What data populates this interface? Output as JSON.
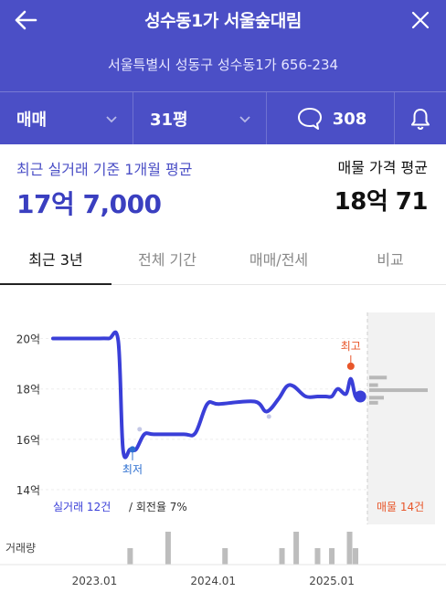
{
  "header": {
    "title": "성수동1가 서울숲대림",
    "address": "서울특별시 성동구 성수동1가 656-234",
    "back_icon": "arrow-left-icon",
    "close_icon": "close-icon"
  },
  "filters": {
    "trade_type": "매매",
    "size": "31평",
    "comment_count": "308"
  },
  "summary": {
    "recent_label": "최근 실거래 기준 1개월 평균",
    "recent_value": "17억 7,000",
    "listing_label": "매물 가격 평균",
    "listing_value": "18억 71"
  },
  "tabs": [
    {
      "label": "최근 3년",
      "active": true
    },
    {
      "label": "전체 기간",
      "active": false
    },
    {
      "label": "매매/전세",
      "active": false
    },
    {
      "label": "비교",
      "active": false
    }
  ],
  "colors": {
    "brand": "#4b4fc6",
    "line": "#3a3fd8",
    "high": "#e8562a",
    "volume": "#bdbdbd"
  },
  "chart_data": {
    "type": "line",
    "y_ticks": [
      "20억",
      "18억",
      "16억",
      "14억"
    ],
    "ylim": [
      14,
      20.6
    ],
    "x_ticks": [
      "2023.01",
      "2024.01",
      "2025.01"
    ],
    "x_tick_values": [
      2023.0,
      2024.0,
      2025.0
    ],
    "xlim": [
      2022.65,
      2025.3
    ],
    "series": [
      {
        "x": [
          2022.65,
          2022.9,
          2023.0,
          2023.12,
          2023.2,
          2023.24,
          2023.3,
          2023.35,
          2023.42,
          2023.5,
          2023.75,
          2023.85,
          2023.95,
          2024.05,
          2024.35,
          2024.45,
          2024.55,
          2024.62,
          2024.68,
          2024.78,
          2024.88,
          2024.95,
          2025.0,
          2025.05,
          2025.12,
          2025.16,
          2025.2,
          2025.24
        ],
        "values": [
          20.0,
          20.0,
          20.0,
          20.0,
          19.9,
          15.6,
          15.6,
          15.6,
          16.2,
          16.2,
          16.2,
          16.25,
          17.4,
          17.4,
          17.5,
          17.1,
          17.6,
          18.1,
          18.1,
          17.7,
          17.7,
          17.7,
          17.7,
          18.0,
          17.8,
          18.4,
          17.7,
          17.7
        ]
      }
    ],
    "scatter_points": {
      "x": [
        2023.38,
        2024.47
      ],
      "values": [
        16.4,
        16.9
      ]
    },
    "low": {
      "label": "최저",
      "x": 2023.32,
      "value": 15.6
    },
    "high": {
      "label": "최고",
      "x": 2025.16,
      "value": 18.9
    },
    "current": {
      "x": 2025.24,
      "value": 17.7
    },
    "listing_hist": [
      {
        "y": 18.45,
        "value": 0.3
      },
      {
        "y": 18.15,
        "value": 0.15
      },
      {
        "y": 17.95,
        "value": 1.0
      },
      {
        "y": 17.65,
        "value": 0.25
      },
      {
        "y": 17.45,
        "value": 0.15
      }
    ],
    "volume": {
      "label": "거래량",
      "x": [
        2023.3,
        2023.62,
        2024.1,
        2024.58,
        2024.7,
        2024.88,
        2025.0,
        2025.15,
        2025.2
      ],
      "values": [
        1,
        2,
        1,
        1,
        2,
        1,
        1,
        2,
        1
      ]
    },
    "footer_left_count": "실거래 12건",
    "footer_left_rest": " / 회전율 7%",
    "footer_right": "매물 14건"
  }
}
